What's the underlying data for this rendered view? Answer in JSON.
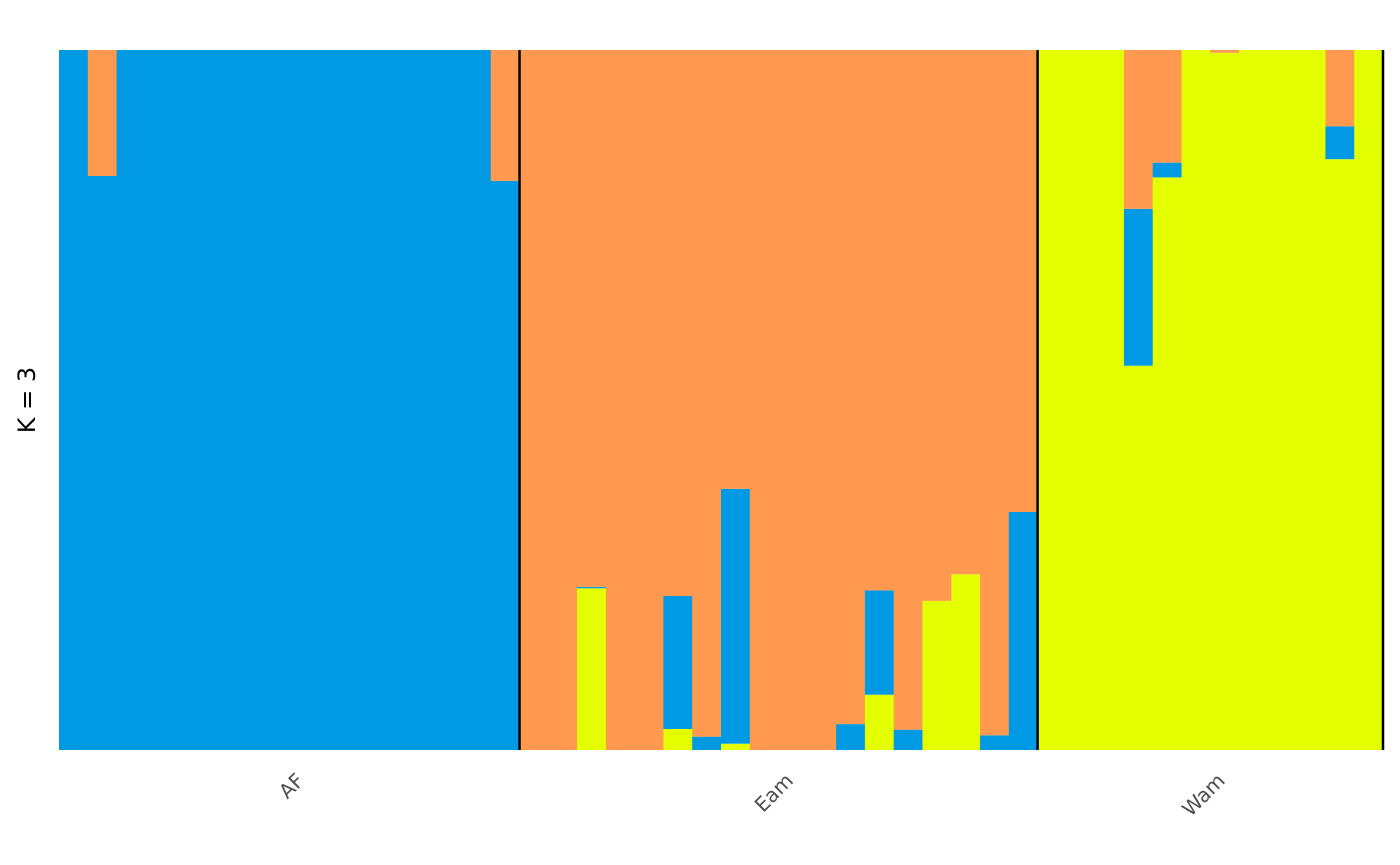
{
  "chart_data": {
    "type": "stacked-bar",
    "ylabel": "K  =  3",
    "ylim": [
      0,
      1
    ],
    "groups": [
      {
        "name": "AF",
        "size": 16
      },
      {
        "name": "Eam",
        "size": 18
      },
      {
        "name": "Wam",
        "size": 12
      }
    ],
    "series": [
      {
        "color": "#e3ff00",
        "values": [
          0,
          0,
          0,
          0,
          0,
          0,
          0,
          0,
          0,
          0,
          0,
          0,
          0,
          0,
          0,
          0,
          0,
          0,
          0.231,
          0,
          0,
          0.03,
          0,
          0.009,
          0,
          0,
          0,
          0,
          0.079,
          0,
          0.213,
          0.251,
          0,
          0,
          1,
          1,
          1,
          0.549,
          0.818,
          1,
          0.996,
          1,
          1,
          1,
          0.844,
          1
        ]
      },
      {
        "color": "#0099e3",
        "values": [
          1,
          0.82,
          1,
          1,
          1,
          1,
          1,
          1,
          1,
          1,
          1,
          1,
          1,
          1,
          1,
          0.813,
          0,
          0,
          0.002,
          0,
          0,
          0.19,
          0.019,
          0.364,
          0,
          0,
          0,
          0.037,
          0.149,
          0.029,
          0,
          0,
          0.021,
          0.34,
          0,
          0,
          0,
          0.224,
          0.021,
          0,
          0,
          0,
          0,
          0,
          0.047,
          0
        ]
      },
      {
        "color": "#ff994f",
        "values": [
          0,
          0.18,
          0,
          0,
          0,
          0,
          0,
          0,
          0,
          0,
          0,
          0,
          0,
          0,
          0,
          0.187,
          1,
          1,
          0.767,
          1,
          1,
          0.78,
          0.981,
          0.627,
          1,
          1,
          1,
          0.963,
          0.772,
          0.971,
          0.787,
          0.749,
          0.979,
          0.66,
          0,
          0,
          0,
          0.227,
          0.161,
          0,
          0.004,
          0,
          0,
          0,
          0.109,
          0
        ]
      }
    ]
  }
}
